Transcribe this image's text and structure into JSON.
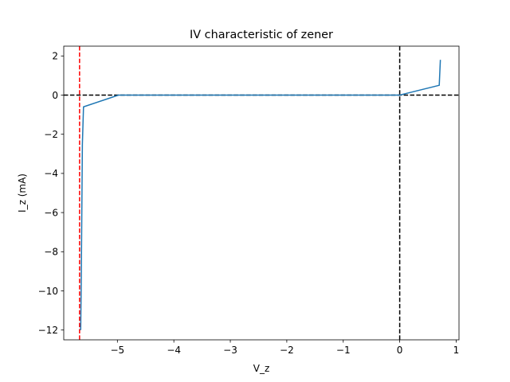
{
  "chart_data": {
    "type": "line",
    "title": "IV characteristic of zener",
    "xlabel": "V_z",
    "ylabel": "I_z (mA)",
    "xlim": [
      -5.95,
      1.05
    ],
    "ylim": [
      -12.5,
      2.5
    ],
    "x_ticks": [
      -5,
      -4,
      -3,
      -2,
      -1,
      0,
      1
    ],
    "x_tick_labels": [
      "−5",
      "−4",
      "−3",
      "−2",
      "−1",
      "0",
      "1"
    ],
    "y_ticks": [
      2,
      0,
      -2,
      -4,
      -6,
      -8,
      -10,
      -12
    ],
    "y_tick_labels": [
      "2",
      "0",
      "−2",
      "−4",
      "−6",
      "−8",
      "−10",
      "−12"
    ],
    "grid": false,
    "series": [
      {
        "style": "solid",
        "color": "#1f77b4",
        "x": [
          0.72,
          0.7,
          0.0,
          -1.0,
          -2.0,
          -3.0,
          -4.0,
          -4.98,
          -5.6,
          -5.62,
          -5.63,
          -5.64,
          -5.65
        ],
        "y": [
          1.8,
          0.5,
          0.0,
          0.0,
          0.0,
          0.0,
          0.0,
          0.0,
          -0.6,
          -2.5,
          -6.0,
          -9.5,
          -12.0
        ]
      }
    ],
    "reference_lines": [
      {
        "orientation": "horizontal",
        "value": 0,
        "style": "dashed",
        "color": "#000000"
      },
      {
        "orientation": "vertical",
        "value": 0,
        "style": "dashed",
        "color": "#000000"
      },
      {
        "orientation": "vertical",
        "value": -5.67,
        "style": "dashed",
        "color": "#ff0000"
      }
    ]
  }
}
